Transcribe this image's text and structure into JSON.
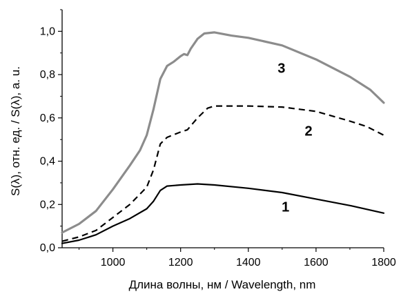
{
  "chart_data": {
    "type": "line",
    "title": "",
    "xlabel": "Длина волны, нм / Wavelength, nm",
    "ylabel": "S(λ), отн. ед. / S(λ), a. u.",
    "xlim": [
      850,
      1800
    ],
    "ylim": [
      0,
      1.1
    ],
    "xticks": [
      1000,
      1200,
      1400,
      1600,
      1800
    ],
    "xtick_labels": [
      "1000",
      "1200",
      "1400",
      "1600",
      "1800"
    ],
    "yticks": [
      0,
      0.2,
      0.4,
      0.6,
      0.8,
      1.0
    ],
    "ytick_labels": [
      "0,0",
      "0,2",
      "0,4",
      "0,6",
      "0,8",
      "1,0"
    ],
    "grid": false,
    "series": [
      {
        "label": "1",
        "color": "#000000",
        "style": "solid",
        "label_at": [
          1510,
          0.19
        ],
        "x": [
          850,
          900,
          950,
          1000,
          1050,
          1100,
          1120,
          1140,
          1160,
          1200,
          1250,
          1300,
          1400,
          1500,
          1600,
          1700,
          1800
        ],
        "y": [
          0.02,
          0.035,
          0.06,
          0.1,
          0.135,
          0.18,
          0.215,
          0.265,
          0.285,
          0.29,
          0.295,
          0.29,
          0.275,
          0.255,
          0.225,
          0.195,
          0.16
        ]
      },
      {
        "label": "2",
        "color": "#000000",
        "style": "dashed",
        "label_at": [
          1578,
          0.54
        ],
        "x": [
          850,
          900,
          950,
          1000,
          1050,
          1100,
          1120,
          1140,
          1160,
          1200,
          1220,
          1250,
          1280,
          1300,
          1400,
          1500,
          1600,
          1700,
          1750,
          1800
        ],
        "y": [
          0.03,
          0.05,
          0.08,
          0.14,
          0.2,
          0.28,
          0.36,
          0.48,
          0.51,
          0.535,
          0.545,
          0.6,
          0.645,
          0.655,
          0.655,
          0.65,
          0.63,
          0.585,
          0.56,
          0.52
        ]
      },
      {
        "label": "3",
        "color": "#8c8c8c",
        "style": "solid",
        "label_at": [
          1498,
          0.83
        ],
        "x": [
          850,
          900,
          950,
          1000,
          1050,
          1080,
          1100,
          1120,
          1140,
          1160,
          1180,
          1200,
          1210,
          1220,
          1230,
          1250,
          1270,
          1300,
          1350,
          1400,
          1500,
          1600,
          1700,
          1760,
          1800
        ],
        "y": [
          0.07,
          0.11,
          0.17,
          0.27,
          0.38,
          0.45,
          0.52,
          0.64,
          0.78,
          0.84,
          0.86,
          0.885,
          0.895,
          0.89,
          0.92,
          0.965,
          0.99,
          0.995,
          0.98,
          0.97,
          0.935,
          0.87,
          0.79,
          0.73,
          0.67
        ]
      }
    ]
  }
}
